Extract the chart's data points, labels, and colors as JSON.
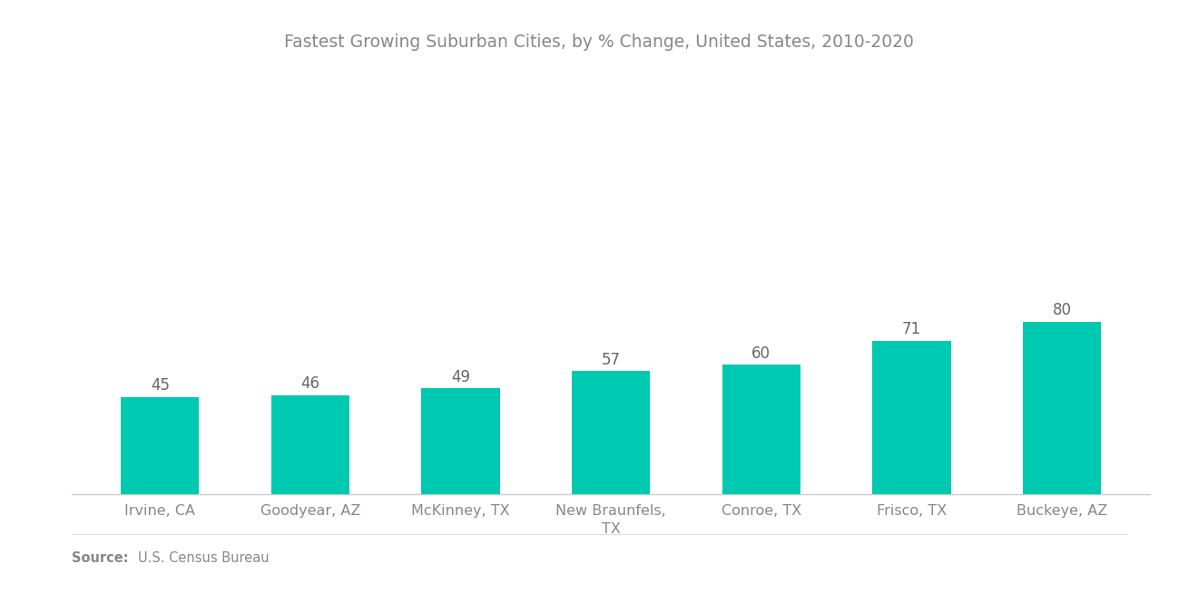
{
  "title": "Fastest Growing Suburban Cities, by % Change, United States, 2010-2020",
  "categories": [
    "Irvine, CA",
    "Goodyear, AZ",
    "McKinney, TX",
    "New Braunfels,\nTX",
    "Conroe, TX",
    "Frisco, TX",
    "Buckeye, AZ"
  ],
  "values": [
    45,
    46,
    49,
    57,
    60,
    71,
    80
  ],
  "bar_color": "#00C9B1",
  "background_color": "#ffffff",
  "title_color": "#888888",
  "label_color": "#888888",
  "value_color": "#666666",
  "source_bold": "Source:",
  "source_text": "U.S. Census Bureau",
  "title_fontsize": 13.5,
  "label_fontsize": 11.5,
  "value_fontsize": 12,
  "source_fontsize": 10.5,
  "bar_width": 0.52,
  "ylim": [
    0,
    145
  ]
}
